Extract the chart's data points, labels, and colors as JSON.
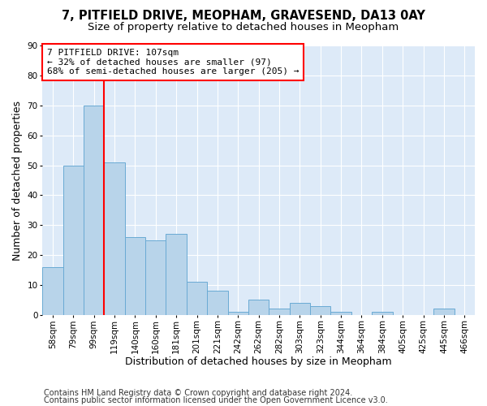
{
  "title_line1": "7, PITFIELD DRIVE, MEOPHAM, GRAVESEND, DA13 0AY",
  "title_line2": "Size of property relative to detached houses in Meopham",
  "xlabel": "Distribution of detached houses by size in Meopham",
  "ylabel": "Number of detached properties",
  "categories": [
    "58sqm",
    "79sqm",
    "99sqm",
    "119sqm",
    "140sqm",
    "160sqm",
    "181sqm",
    "201sqm",
    "221sqm",
    "242sqm",
    "262sqm",
    "282sqm",
    "303sqm",
    "323sqm",
    "344sqm",
    "364sqm",
    "384sqm",
    "405sqm",
    "425sqm",
    "445sqm",
    "466sqm"
  ],
  "values": [
    16,
    50,
    70,
    51,
    26,
    25,
    27,
    11,
    8,
    1,
    5,
    2,
    4,
    3,
    1,
    0,
    1,
    0,
    0,
    2,
    0
  ],
  "bar_color": "#b8d4ea",
  "bar_edge_color": "#6aaad4",
  "annotation_text": "7 PITFIELD DRIVE: 107sqm\n← 32% of detached houses are smaller (97)\n68% of semi-detached houses are larger (205) →",
  "annotation_box_color": "white",
  "annotation_box_edge": "red",
  "ylim": [
    0,
    90
  ],
  "yticks": [
    0,
    10,
    20,
    30,
    40,
    50,
    60,
    70,
    80,
    90
  ],
  "footer_line1": "Contains HM Land Registry data © Crown copyright and database right 2024.",
  "footer_line2": "Contains public sector information licensed under the Open Government Licence v3.0.",
  "bg_color": "#ddeaf8",
  "grid_color": "white",
  "title_fontsize": 10.5,
  "subtitle_fontsize": 9.5,
  "axis_label_fontsize": 9,
  "tick_fontsize": 7.5,
  "annotation_fontsize": 8,
  "footer_fontsize": 7
}
